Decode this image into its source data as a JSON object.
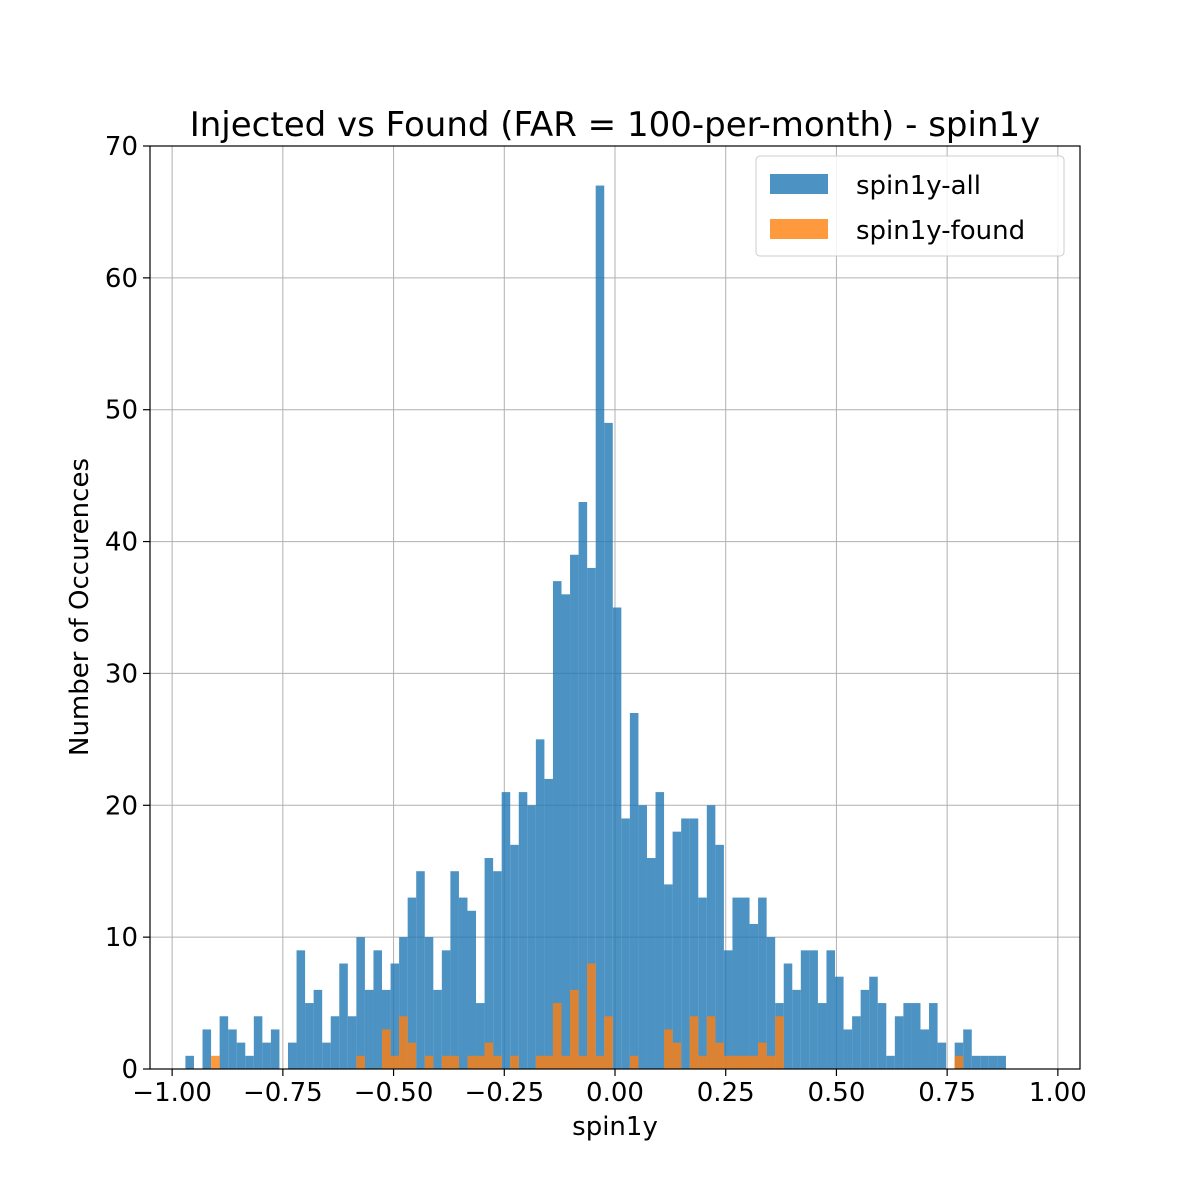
{
  "chart_data": {
    "type": "bar",
    "title": "Injected vs Found (FAR = 100-per-month) - spin1y",
    "xlabel": "spin1y",
    "ylabel": "Number of Occurences",
    "xlim": [
      -1.05,
      1.05
    ],
    "ylim": [
      0,
      70
    ],
    "xticks": [
      -1.0,
      -0.75,
      -0.5,
      -0.25,
      0.0,
      0.25,
      0.5,
      0.75,
      1.0
    ],
    "xtick_labels": [
      "−1.00",
      "−0.75",
      "−0.50",
      "−0.25",
      "0.00",
      "0.25",
      "0.50",
      "0.75",
      "1.00"
    ],
    "yticks": [
      0,
      10,
      20,
      30,
      40,
      50,
      60,
      70
    ],
    "ytick_labels": [
      "0",
      "10",
      "20",
      "30",
      "40",
      "50",
      "60",
      "70"
    ],
    "grid": true,
    "legend_position": "top-right",
    "bin_start": -0.97,
    "bin_width": 0.0193,
    "series": [
      {
        "name": "spin1y-all",
        "color": "#1f77b4",
        "values": [
          1,
          0,
          3,
          0,
          4,
          3,
          2,
          1,
          4,
          2,
          3,
          0,
          2,
          9,
          5,
          6,
          2,
          4,
          8,
          4,
          10,
          6,
          9,
          6,
          8,
          10,
          13,
          15,
          10,
          6,
          9,
          15,
          13,
          12,
          5,
          16,
          15,
          21,
          17,
          21,
          20,
          25,
          22,
          37,
          36,
          39,
          43,
          38,
          67,
          49,
          35,
          19,
          27,
          20,
          16,
          21,
          14,
          18,
          19,
          19,
          13,
          20,
          17,
          9,
          13,
          13,
          11,
          13,
          10,
          5,
          8,
          6,
          9,
          9,
          5,
          9,
          7,
          3,
          4,
          6,
          7,
          5,
          1,
          4,
          5,
          5,
          3,
          5,
          2,
          0,
          2,
          3,
          1,
          1,
          1,
          1
        ]
      },
      {
        "name": "spin1y-found",
        "color": "#ff7f0e",
        "values": [
          0,
          0,
          0,
          1,
          0,
          0,
          0,
          0,
          0,
          0,
          0,
          0,
          0,
          0,
          0,
          0,
          0,
          0,
          0,
          0,
          1,
          0,
          0,
          3,
          1,
          4,
          2,
          0,
          1,
          0,
          1,
          1,
          0,
          1,
          1,
          2,
          1,
          0,
          1,
          0,
          0,
          1,
          1,
          5,
          1,
          6,
          1,
          8,
          1,
          4,
          0,
          0,
          1,
          0,
          0,
          0,
          3,
          2,
          0,
          4,
          1,
          4,
          2,
          1,
          1,
          1,
          1,
          2,
          1,
          4,
          0,
          0,
          0,
          0,
          0,
          0,
          0,
          0,
          0,
          0,
          0,
          0,
          0,
          0,
          0,
          0,
          0,
          0,
          0,
          0,
          1,
          0,
          0,
          0,
          0,
          0
        ]
      }
    ]
  }
}
